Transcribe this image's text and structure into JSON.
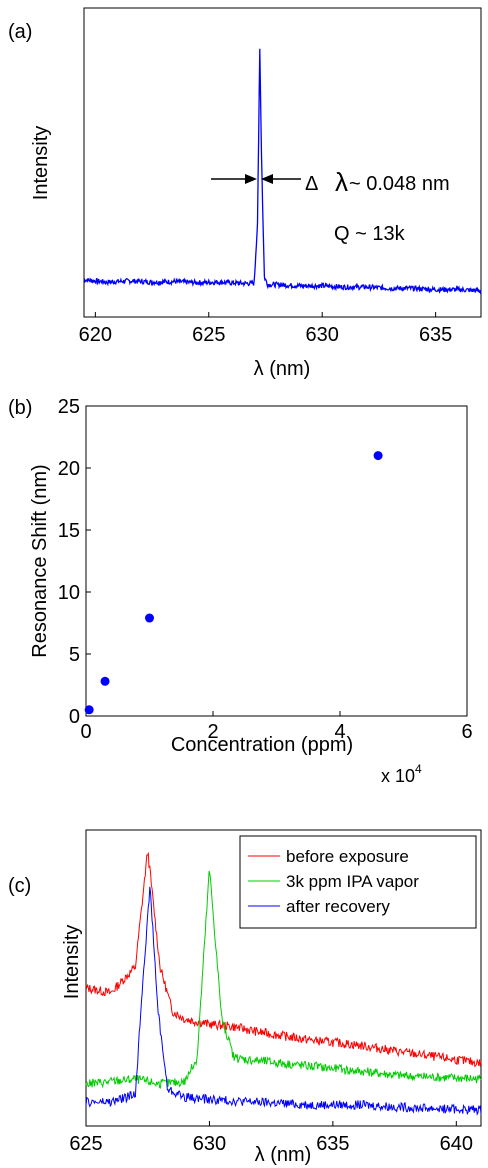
{
  "chart_data": [
    {
      "panel_label": "(a)",
      "type": "line",
      "xlabel": "λ (nm)",
      "ylabel": "Intensity",
      "xlim": [
        619.5,
        637
      ],
      "xticks": [
        620,
        625,
        630,
        635
      ],
      "yticks": [],
      "annotations": [
        "Δ",
        "λ",
        "~ 0.048 nm",
        "Q ~ 13k"
      ],
      "colors": {
        "series": "#0000ff"
      },
      "series": [
        {
          "color": "#0000ff",
          "x": [
            619.5,
            620.5,
            621.5,
            622.5,
            623.5,
            624.5,
            625.5,
            626.5,
            627.0,
            627.15,
            627.25,
            627.33,
            627.45,
            627.6,
            628.0,
            629.0,
            630.0,
            631.0,
            632.0,
            633.0,
            634.0,
            635.0,
            636.0,
            637.0
          ],
          "y": [
            0.07,
            0.06,
            0.065,
            0.06,
            0.062,
            0.058,
            0.06,
            0.055,
            0.055,
            0.3,
            1.0,
            0.55,
            0.08,
            0.05,
            0.05,
            0.045,
            0.045,
            0.04,
            0.04,
            0.035,
            0.035,
            0.03,
            0.03,
            0.025
          ]
        }
      ]
    },
    {
      "panel_label": "(b)",
      "type": "scatter",
      "xlabel": "Concentration (ppm)",
      "ylabel": "Resonance Shift (nm)",
      "xlim": [
        0,
        60000
      ],
      "ylim": [
        0,
        25
      ],
      "xticks": [
        0,
        2,
        4,
        6
      ],
      "yticks": [
        0,
        5,
        10,
        15,
        20,
        25
      ],
      "x_multiplier_label": "x 10",
      "x_multiplier_exp": "4",
      "colors": {
        "marker": "#0000ff"
      },
      "points": [
        {
          "x": 500,
          "y": 0.5
        },
        {
          "x": 3000,
          "y": 2.8
        },
        {
          "x": 10000,
          "y": 7.9
        },
        {
          "x": 46000,
          "y": 21.0
        }
      ]
    },
    {
      "panel_label": "(c)",
      "type": "line",
      "xlabel": "λ (nm)",
      "ylabel": "Intensity",
      "xlim": [
        625,
        641
      ],
      "xticks": [
        625,
        630,
        635,
        640
      ],
      "yticks": [],
      "legend_position": "top-right",
      "series": [
        {
          "name": "before exposure",
          "color": "#ff0000",
          "x": [
            625,
            626,
            627,
            627.5,
            628,
            628.5,
            629,
            630,
            631,
            632,
            634,
            636,
            638,
            641
          ],
          "y": [
            0.47,
            0.45,
            0.55,
            1.0,
            0.55,
            0.38,
            0.35,
            0.33,
            0.32,
            0.3,
            0.27,
            0.25,
            0.22,
            0.18
          ]
        },
        {
          "name": "3k ppm IPA vapor",
          "color": "#00cc00",
          "x": [
            625,
            626,
            627,
            628,
            629,
            629.5,
            630.0,
            630.5,
            631,
            632,
            634,
            636,
            638,
            641
          ],
          "y": [
            0.1,
            0.11,
            0.12,
            0.1,
            0.11,
            0.2,
            0.93,
            0.35,
            0.2,
            0.19,
            0.17,
            0.15,
            0.13,
            0.12
          ]
        },
        {
          "name": "after recovery",
          "color": "#0000ff",
          "x": [
            625,
            626,
            627,
            627.3,
            627.6,
            627.9,
            628.3,
            629,
            630,
            632,
            634,
            636,
            638,
            641
          ],
          "y": [
            0.03,
            0.03,
            0.06,
            0.5,
            0.86,
            0.4,
            0.08,
            0.05,
            0.04,
            0.03,
            0.02,
            0.02,
            0.01,
            0.0
          ]
        }
      ]
    }
  ]
}
